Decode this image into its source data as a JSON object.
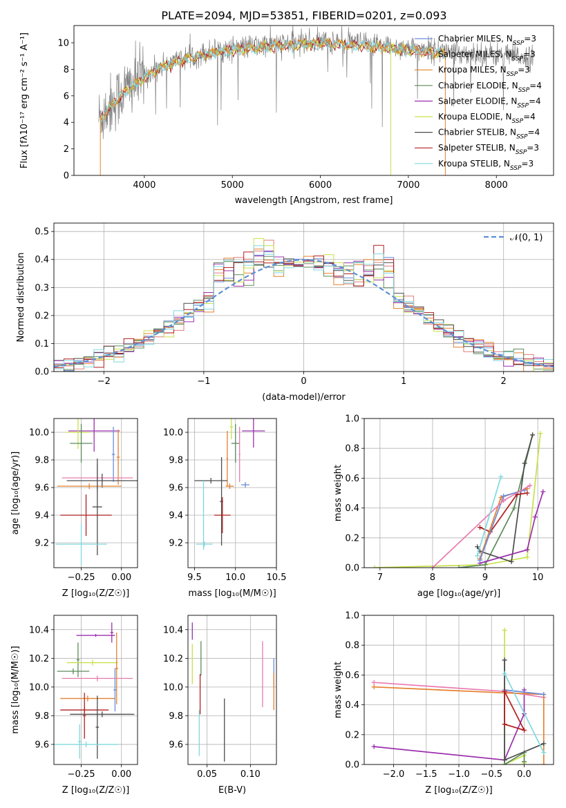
{
  "colors": {
    "Chabrier MILES": "#6a8cd8",
    "Salpeter MILES": "#e07b7b",
    "Kroupa MILES": "#e4802e",
    "Chabrier ELODIE": "#5b8a5b",
    "Salpeter ELODIE": "#9b2fae",
    "Kroupa ELODIE": "#c7e04a",
    "Chabrier STELIB": "#4c4c4c",
    "Salpeter STELIB": "#b01f1f",
    "Kroupa STELIB": "#7fd8de",
    "pink": "#e87bb0",
    "gauss": "#5b8fd6"
  },
  "chart_data": [
    {
      "id": "spectrum",
      "type": "line",
      "title": "PLATE=2094, MJD=53851, FIBERID=0201, z=0.093",
      "xlabel": "wavelength [Angstrom, rest frame]",
      "ylabel": "Flux [fλ10⁻¹⁷ erg cm⁻² s⁻¹ A⁻¹]",
      "xlim": [
        3200,
        8650
      ],
      "ylim": [
        0,
        11.3
      ],
      "xticks": [
        "4000",
        "5000",
        "6000",
        "7000",
        "8000"
      ],
      "yticks": [
        "0",
        "2",
        "4",
        "6",
        "8",
        "10"
      ],
      "legend_placement": "right",
      "legend": [
        {
          "label": "Chabrier MILES, N",
          "sub": "SSP",
          "eq": "=3"
        },
        {
          "label": "Salpeter MILES, N",
          "sub": "SSP",
          "eq": "=3"
        },
        {
          "label": "Kroupa MILES, N",
          "sub": "SSP",
          "eq": "=3"
        },
        {
          "label": "Chabrier ELODIE, N",
          "sub": "SSP",
          "eq": "=4"
        },
        {
          "label": "Salpeter ELODIE, N",
          "sub": "SSP",
          "eq": "=4"
        },
        {
          "label": "Kroupa ELODIE, N",
          "sub": "SSP",
          "eq": "=4"
        },
        {
          "label": "Chabrier STELIB, N",
          "sub": "SSP",
          "eq": "=4"
        },
        {
          "label": "Salpeter STELIB, N",
          "sub": "SSP",
          "eq": "=3"
        },
        {
          "label": "Kroupa STELIB, N",
          "sub": "SSP",
          "eq": "=3"
        }
      ],
      "continuum": [
        [
          3500,
          4.4
        ],
        [
          3600,
          5.2
        ],
        [
          3700,
          5.9
        ],
        [
          3800,
          6.6
        ],
        [
          3900,
          7.0
        ],
        [
          4000,
          7.5
        ],
        [
          4100,
          7.9
        ],
        [
          4200,
          8.3
        ],
        [
          4300,
          8.5
        ],
        [
          4400,
          8.8
        ],
        [
          4600,
          9.1
        ],
        [
          4800,
          9.4
        ],
        [
          5000,
          9.6
        ],
        [
          5200,
          9.7
        ],
        [
          5500,
          9.9
        ],
        [
          6000,
          10.1
        ],
        [
          6500,
          9.9
        ],
        [
          7000,
          9.6
        ],
        [
          7500,
          9.3
        ],
        [
          8000,
          9.1
        ],
        [
          8400,
          8.9
        ]
      ],
      "data_range": [
        3480,
        8420
      ],
      "model_range": [
        3500,
        7420
      ]
    },
    {
      "id": "residuals",
      "type": "bar",
      "xlabel": "(data-model)/error",
      "ylabel": "Normed distribution",
      "xlim": [
        -2.5,
        2.5
      ],
      "ylim": [
        0,
        0.53
      ],
      "xticks": [
        "−2",
        "−1",
        "0",
        "1",
        "2"
      ],
      "yticks": [
        "0.0",
        "0.1",
        "0.2",
        "0.3",
        "0.4",
        "0.5"
      ],
      "legend": "𝒩(0, 1)",
      "legend_placement": "top-right",
      "bin_width": 0.1
    },
    {
      "id": "age-vs-Z",
      "type": "scatter",
      "xlabel": "Z [log₁₀(Z/Z☉)]",
      "ylabel": "age  [log₁₀(age/yr)]",
      "xlim": [
        -0.42,
        0.1
      ],
      "ylim": [
        9.02,
        10.1
      ],
      "xticks": [
        "−0.25",
        "0.00"
      ],
      "yticks": [
        "9.2",
        "9.4",
        "9.6",
        "9.8",
        "10.0"
      ],
      "points": [
        {
          "s": "Salpeter ELODIE",
          "x": -0.17,
          "y": 10.01,
          "ex": 0.16,
          "ey": 0.15
        },
        {
          "s": "Kroupa ELODIE",
          "x": -0.27,
          "y": 10.0,
          "ex": 0.07,
          "ey": 0.12
        },
        {
          "s": "Chabrier ELODIE",
          "x": -0.25,
          "y": 9.92,
          "ex": 0.07,
          "ey": 0.14
        },
        {
          "s": "Kroupa MILES",
          "x": -0.02,
          "y": 9.82,
          "ex": 0.01,
          "ey": 0.2
        },
        {
          "s": "Chabrier MILES",
          "x": -0.05,
          "y": 9.84,
          "ex": 0.01,
          "ey": 0.2
        },
        {
          "s": "pink",
          "x": -0.15,
          "y": 9.67,
          "ex": 0.22,
          "ey": 0.1
        },
        {
          "s": "Chabrier STELIB",
          "x": -0.12,
          "y": 9.65,
          "ex": 0.22,
          "ey": 0.05
        },
        {
          "s": "Kroupa MILES",
          "x": -0.2,
          "y": 9.61,
          "ex": 0.2,
          "ey": 0.02
        },
        {
          "s": "Chabrier STELIB",
          "x": -0.15,
          "y": 9.46,
          "ex": 0.03,
          "ey": 0.35
        },
        {
          "s": "Salpeter STELIB",
          "x": -0.22,
          "y": 9.4,
          "ex": 0.16,
          "ey": 0.15
        },
        {
          "s": "Kroupa STELIB",
          "x": -0.25,
          "y": 9.19,
          "ex": 0.16,
          "ey": 0.15
        }
      ]
    },
    {
      "id": "age-vs-mass",
      "type": "scatter",
      "xlabel": "mass [log₁₀(M/M☉)]",
      "ylabel": "",
      "xlim": [
        9.42,
        10.5
      ],
      "ylim": [
        9.02,
        10.1
      ],
      "xticks": [
        "9.5",
        "10.0",
        "10.5"
      ],
      "yticks": [
        "9.2",
        "9.4",
        "9.6",
        "9.8",
        "10.0"
      ],
      "points": [
        {
          "s": "Salpeter ELODIE",
          "x": 10.22,
          "y": 10.01,
          "ex": 0.14,
          "ey": 0.12
        },
        {
          "s": "Kroupa ELODIE",
          "x": 9.95,
          "y": 10.04,
          "ex": 0.02,
          "ey": 0.09
        },
        {
          "s": "Chabrier ELODIE",
          "x": 10.0,
          "y": 9.92,
          "ex": 0.05,
          "ey": 0.14
        },
        {
          "s": "pink",
          "x": 10.05,
          "y": 9.84,
          "ex": 0.01,
          "ey": 0.2
        },
        {
          "s": "Kroupa MILES",
          "x": 9.9,
          "y": 9.81,
          "ex": 0.01,
          "ey": 0.2
        },
        {
          "s": "Chabrier MILES",
          "x": 10.12,
          "y": 9.62,
          "ex": 0.05,
          "ey": 0.02
        },
        {
          "s": "Kroupa MILES",
          "x": 9.93,
          "y": 9.61,
          "ex": 0.05,
          "ey": 0.02
        },
        {
          "s": "Chabrier STELIB",
          "x": 9.83,
          "y": 9.5,
          "ex": 0.02,
          "ey": 0.32
        },
        {
          "s": "Chabrier STELIB",
          "x": 9.7,
          "y": 9.65,
          "ex": 0.2,
          "ey": 0.02
        },
        {
          "s": "Salpeter STELIB",
          "x": 9.84,
          "y": 9.4,
          "ex": 0.1,
          "ey": 0.13
        },
        {
          "s": "Kroupa STELIB",
          "x": 9.61,
          "y": 9.4,
          "ex": 0.01,
          "ey": 0.25
        },
        {
          "s": "Kroupa STELIB",
          "x": 9.62,
          "y": 9.19,
          "ex": 0.1,
          "ey": 0.02
        }
      ]
    },
    {
      "id": "weight-vs-age",
      "type": "line",
      "xlabel": "age  [log₁₀(age/yr)]",
      "ylabel": "mass weight",
      "xlim": [
        6.7,
        10.3
      ],
      "ylim": [
        0,
        1.0
      ],
      "xticks": [
        "7",
        "8",
        "9",
        "10"
      ],
      "yticks": [
        "0.0",
        "0.2",
        "0.4",
        "0.6",
        "0.8",
        "1.0"
      ],
      "series": [
        {
          "s": "Kroupa ELODIE",
          "pts": [
            [
              6.9,
              0.0
            ],
            [
              9.0,
              0.02
            ],
            [
              9.8,
              0.07
            ],
            [
              10.05,
              0.9
            ]
          ]
        },
        {
          "s": "Chabrier ELODIE",
          "pts": [
            [
              8.5,
              0.0
            ],
            [
              9.0,
              0.02
            ],
            [
              9.55,
              0.4
            ],
            [
              9.9,
              0.89
            ]
          ]
        },
        {
          "s": "Chabrier STELIB",
          "pts": [
            [
              8.85,
              0.14
            ],
            [
              8.9,
              0.11
            ],
            [
              9.5,
              0.04
            ],
            [
              9.75,
              0.7
            ],
            [
              9.9,
              0.89
            ]
          ]
        },
        {
          "s": "Salpeter ELODIE",
          "pts": [
            [
              8.9,
              0.03
            ],
            [
              9.8,
              0.12
            ],
            [
              9.95,
              0.34
            ],
            [
              10.1,
              0.51
            ]
          ]
        },
        {
          "s": "Salpeter STELIB",
          "pts": [
            [
              8.9,
              0.27
            ],
            [
              9.1,
              0.24
            ],
            [
              9.6,
              0.49
            ],
            [
              9.8,
              0.5
            ]
          ]
        },
        {
          "s": "Kroupa MILES",
          "pts": [
            [
              8.9,
              0.06
            ],
            [
              9.3,
              0.47
            ],
            [
              9.8,
              0.53
            ]
          ]
        },
        {
          "s": "Chabrier MILES",
          "pts": [
            [
              8.9,
              0.05
            ],
            [
              9.35,
              0.48
            ],
            [
              9.75,
              0.52
            ]
          ]
        },
        {
          "s": "pink",
          "pts": [
            [
              8.0,
              0.0
            ],
            [
              9.35,
              0.45
            ],
            [
              9.85,
              0.55
            ]
          ]
        },
        {
          "s": "Kroupa STELIB",
          "pts": [
            [
              8.85,
              0.08
            ],
            [
              9.3,
              0.61
            ]
          ]
        }
      ]
    },
    {
      "id": "mass-vs-Z",
      "type": "scatter",
      "xlabel": "Z [log₁₀(Z/Z☉)]",
      "ylabel": "mass [log₁₀(M/M☉)]",
      "xlim": [
        -0.42,
        0.1
      ],
      "ylim": [
        9.46,
        10.5
      ],
      "xticks": [
        "−0.25",
        "0.00"
      ],
      "yticks": [
        "9.6",
        "9.8",
        "10.0",
        "10.2",
        "10.4"
      ],
      "points": [
        {
          "s": "Salpeter ELODIE",
          "x": -0.06,
          "y": 10.38,
          "ex": 0.01,
          "ey": 0.07
        },
        {
          "s": "Salpeter ELODIE",
          "x": -0.16,
          "y": 10.36,
          "ex": 0.12,
          "ey": 0.01
        },
        {
          "s": "Chabrier ELODIE",
          "x": -0.27,
          "y": 10.19,
          "ex": 0.01,
          "ey": 0.12
        },
        {
          "s": "Kroupa ELODIE",
          "x": -0.18,
          "y": 10.17,
          "ex": 0.16,
          "ey": 0.02
        },
        {
          "s": "Chabrier ELODIE",
          "x": -0.3,
          "y": 10.11,
          "ex": 0.1,
          "ey": 0.02
        },
        {
          "s": "Kroupa MILES",
          "x": -0.03,
          "y": 10.13,
          "ex": 0.01,
          "ey": 0.25
        },
        {
          "s": "Chabrier MILES",
          "x": -0.04,
          "y": 9.98,
          "ex": 0.01,
          "ey": 0.15
        },
        {
          "s": "pink",
          "x": -0.15,
          "y": 10.06,
          "ex": 0.22,
          "ey": 0.02
        },
        {
          "s": "Kroupa MILES",
          "x": -0.21,
          "y": 9.92,
          "ex": 0.17,
          "ey": 0.02
        },
        {
          "s": "Salpeter STELIB",
          "x": -0.23,
          "y": 9.84,
          "ex": 0.15,
          "ey": 0.02
        },
        {
          "s": "Salpeter STELIB",
          "x": -0.23,
          "y": 9.8,
          "ex": 0.01,
          "ey": 0.16
        },
        {
          "s": "Chabrier STELIB",
          "x": -0.12,
          "y": 9.81,
          "ex": 0.2,
          "ey": 0.02
        },
        {
          "s": "Chabrier STELIB",
          "x": -0.15,
          "y": 9.72,
          "ex": 0.01,
          "ey": 0.22
        },
        {
          "s": "Kroupa STELIB",
          "x": -0.22,
          "y": 9.6,
          "ex": 0.2,
          "ey": 0.02
        },
        {
          "s": "Kroupa STELIB",
          "x": -0.26,
          "y": 9.62,
          "ex": 0.01,
          "ey": 0.12
        }
      ]
    },
    {
      "id": "mass-vs-EBV",
      "type": "scatter",
      "xlabel": "E(B-V)",
      "ylabel": "",
      "xlim": [
        0.028,
        0.13
      ],
      "ylim": [
        9.46,
        10.5
      ],
      "xticks": [
        "0.05",
        "0.10"
      ],
      "yticks": [
        "9.6",
        "9.8",
        "10.0",
        "10.2",
        "10.4"
      ],
      "points": [
        {
          "s": "Salpeter ELODIE",
          "x": 0.033,
          "y": 10.39,
          "ey": 0.06
        },
        {
          "s": "Kroupa ELODIE",
          "x": 0.033,
          "y": 10.16,
          "ey": 0.14
        },
        {
          "s": "Chabrier ELODIE",
          "x": 0.043,
          "y": 10.2,
          "ey": 0.12
        },
        {
          "s": "Salpeter STELIB",
          "x": 0.042,
          "y": 9.95,
          "ey": 0.14
        },
        {
          "s": "Kroupa STELIB",
          "x": 0.041,
          "y": 9.68,
          "ey": 0.16
        },
        {
          "s": "Chabrier STELIB",
          "x": 0.07,
          "y": 9.7,
          "ey": 0.22
        },
        {
          "s": "pink",
          "x": 0.114,
          "y": 10.09,
          "ey": 0.23
        },
        {
          "s": "Chabrier MILES",
          "x": 0.127,
          "y": 10.1,
          "ey": 0.1
        },
        {
          "s": "Kroupa MILES",
          "x": 0.127,
          "y": 9.97,
          "ey": 0.13
        }
      ]
    },
    {
      "id": "weight-vs-Z",
      "type": "line",
      "xlabel": "Z [log₁₀(Z/Z☉)]",
      "ylabel": "mass weight",
      "xlim": [
        -2.45,
        0.45
      ],
      "ylim": [
        0,
        1.0
      ],
      "xticks": [
        "−2.0",
        "−1.5",
        "−1.0",
        "−0.5",
        "0.0"
      ],
      "yticks": [
        "0.0",
        "0.2",
        "0.4",
        "0.6",
        "0.8",
        "1.0"
      ],
      "series": [
        {
          "s": "Salpeter ELODIE",
          "pts": [
            [
              -2.3,
              0.12
            ],
            [
              -0.3,
              0.03
            ],
            [
              0.0,
              0.34
            ],
            [
              0.0,
              0.5
            ]
          ]
        },
        {
          "s": "pink",
          "pts": [
            [
              -2.3,
              0.55
            ],
            [
              -0.3,
              0.49
            ],
            [
              0.3,
              0.45
            ]
          ]
        },
        {
          "s": "Kroupa MILES",
          "pts": [
            [
              -2.3,
              0.52
            ],
            [
              -0.3,
              0.48
            ],
            [
              0.3,
              0.47
            ],
            [
              0.3,
              0.0
            ]
          ]
        },
        {
          "s": "Chabrier MILES",
          "pts": [
            [
              -0.3,
              0.5
            ],
            [
              0.3,
              0.47
            ]
          ]
        },
        {
          "s": "Kroupa ELODIE",
          "pts": [
            [
              -0.3,
              0.9
            ],
            [
              -0.3,
              0.0
            ],
            [
              0.0,
              0.06
            ],
            [
              0.0,
              0.01
            ]
          ]
        },
        {
          "s": "Chabrier ELODIE",
          "pts": [
            [
              -0.3,
              0.7
            ],
            [
              -0.3,
              0.0
            ],
            [
              0.0,
              0.08
            ],
            [
              0.0,
              0.02
            ]
          ]
        },
        {
          "s": "Chabrier STELIB",
          "pts": [
            [
              -0.3,
              0.7
            ],
            [
              -0.3,
              0.03
            ],
            [
              0.3,
              0.14
            ]
          ]
        },
        {
          "s": "Salpeter STELIB",
          "pts": [
            [
              -0.3,
              0.49
            ],
            [
              -0.3,
              0.27
            ],
            [
              0.0,
              0.23
            ],
            [
              -0.3,
              0.49
            ]
          ]
        },
        {
          "s": "Kroupa STELIB",
          "pts": [
            [
              -0.3,
              0.61
            ],
            [
              0.3,
              0.08
            ]
          ]
        }
      ]
    }
  ]
}
